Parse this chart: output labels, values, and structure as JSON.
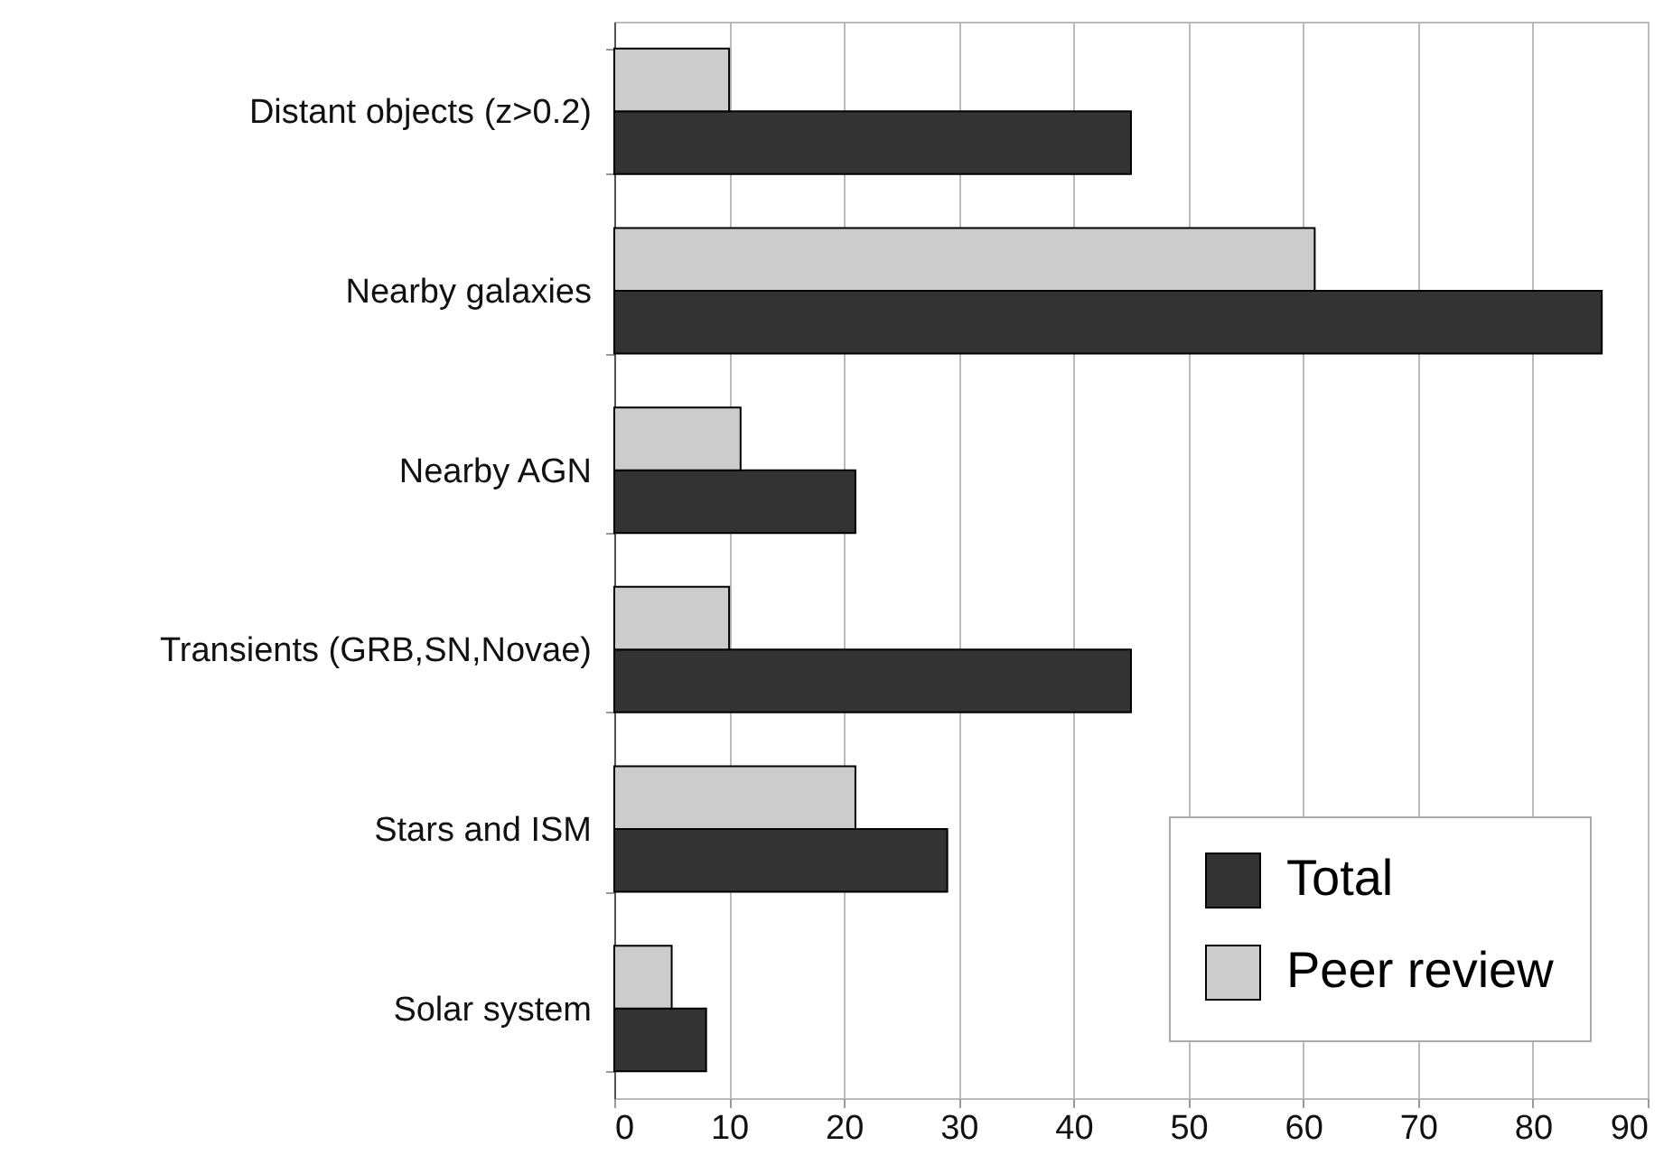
{
  "chart_data": {
    "type": "bar",
    "orientation": "horizontal",
    "categories": [
      "Distant objects (z>0.2)",
      "Nearby galaxies",
      "Nearby AGN",
      "Transients (GRB,SN,Novae)",
      "Stars and ISM",
      "Solar system"
    ],
    "series": [
      {
        "name": "Total",
        "color": "#333333",
        "values": [
          45,
          86,
          21,
          45,
          29,
          8
        ]
      },
      {
        "name": "Peer review",
        "color": "#cccccc",
        "values": [
          10,
          61,
          11,
          10,
          21,
          5
        ]
      }
    ],
    "xlim": [
      0,
      90
    ],
    "xticks": [
      0,
      10,
      20,
      30,
      40,
      50,
      60,
      70,
      80,
      90
    ],
    "grid": "x",
    "legend": "bottom right"
  }
}
